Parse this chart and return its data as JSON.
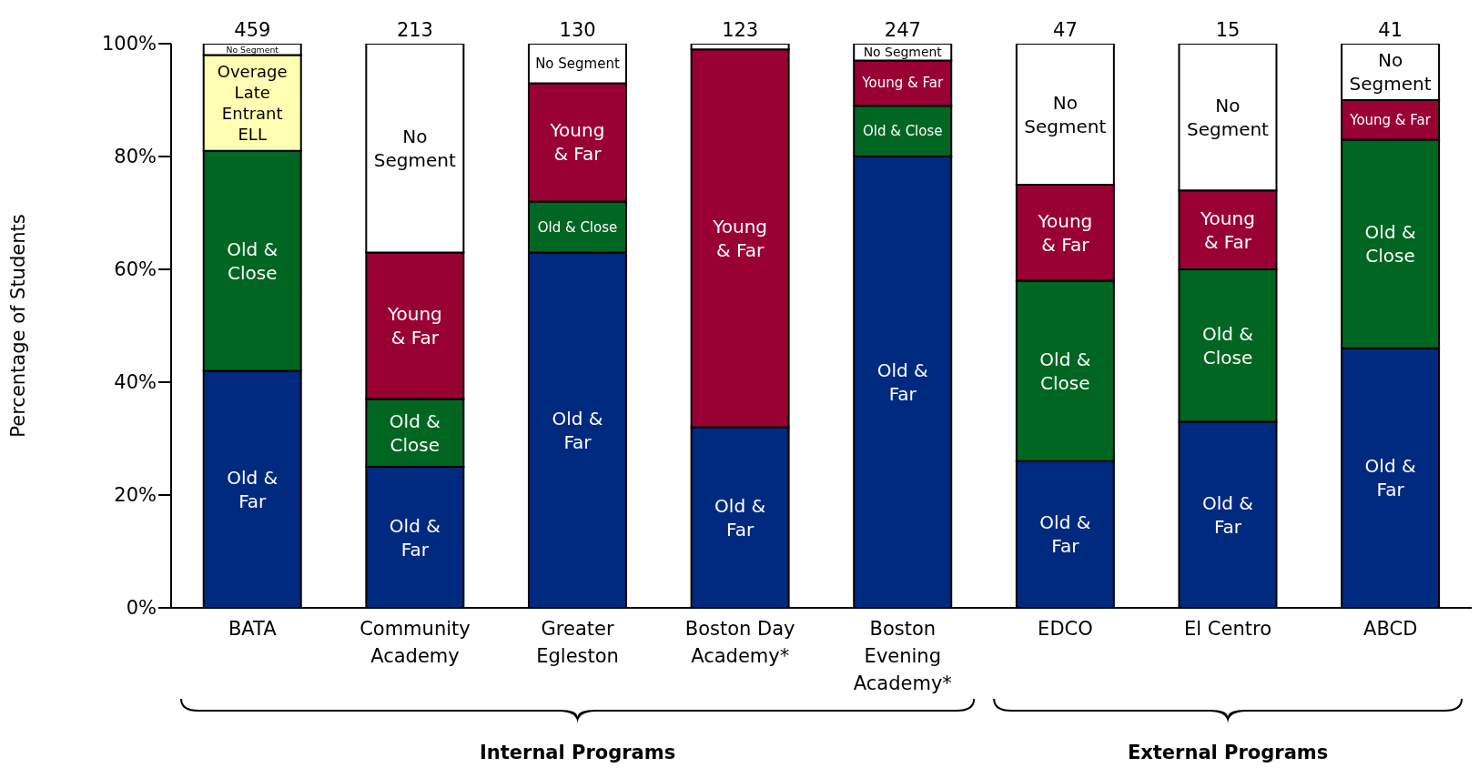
{
  "chart_data": {
    "type": "bar",
    "stacked": true,
    "ylabel": "Percentage of Students",
    "categories": [
      "BATA",
      "Community Academy",
      "Greater Egleston",
      "Boston Day Academy*",
      "Boston Evening Academy*",
      "EDCO",
      "El Centro",
      "ABCD"
    ],
    "series": [
      {
        "name": "Old & Far",
        "color": "#002a7f",
        "values": [
          42,
          25,
          63,
          32,
          80,
          26,
          33,
          46
        ]
      },
      {
        "name": "Old & Close",
        "color": "#006622",
        "values": [
          39,
          12,
          9,
          null,
          9,
          32,
          27,
          37
        ]
      },
      {
        "name": "Young & Far",
        "color": "#990033",
        "values": [
          null,
          26,
          21,
          67,
          8,
          17,
          14,
          7
        ]
      },
      {
        "name": "Overage Late Entrant ELL",
        "color": "#ffffb3",
        "values": [
          17,
          null,
          null,
          null,
          null,
          null,
          null,
          null
        ]
      },
      {
        "name": "No Segment",
        "color": "#ffffff",
        "values": [
          2,
          37,
          7,
          1,
          3,
          25,
          26,
          10
        ]
      }
    ],
    "ylim": [
      0,
      100
    ],
    "yticks": [
      {
        "value": 0,
        "label": "0%"
      },
      {
        "value": 20,
        "label": "20%"
      },
      {
        "value": 40,
        "label": "40%"
      },
      {
        "value": 60,
        "label": "60%"
      },
      {
        "value": 80,
        "label": "80%"
      },
      {
        "value": 100,
        "label": "100%"
      }
    ],
    "annotations": [
      "Internal Programs",
      "External Programs",
      {
        "text": "459",
        "x": "BATA",
        "y": 100
      },
      {
        "text": "213",
        "x": "Community Academy",
        "y": 100
      },
      {
        "text": "130",
        "x": "Greater Egleston",
        "y": 100
      },
      {
        "text": "123",
        "x": "Boston Day Academy*",
        "y": 100
      },
      {
        "text": "247",
        "x": "Boston Evening Academy*",
        "y": 100
      },
      {
        "text": "47",
        "x": "EDCO",
        "y": 100
      },
      {
        "text": "15",
        "x": "El Centro",
        "y": 100
      },
      {
        "text": "41",
        "x": "ABCD",
        "y": 100
      }
    ]
  }
}
